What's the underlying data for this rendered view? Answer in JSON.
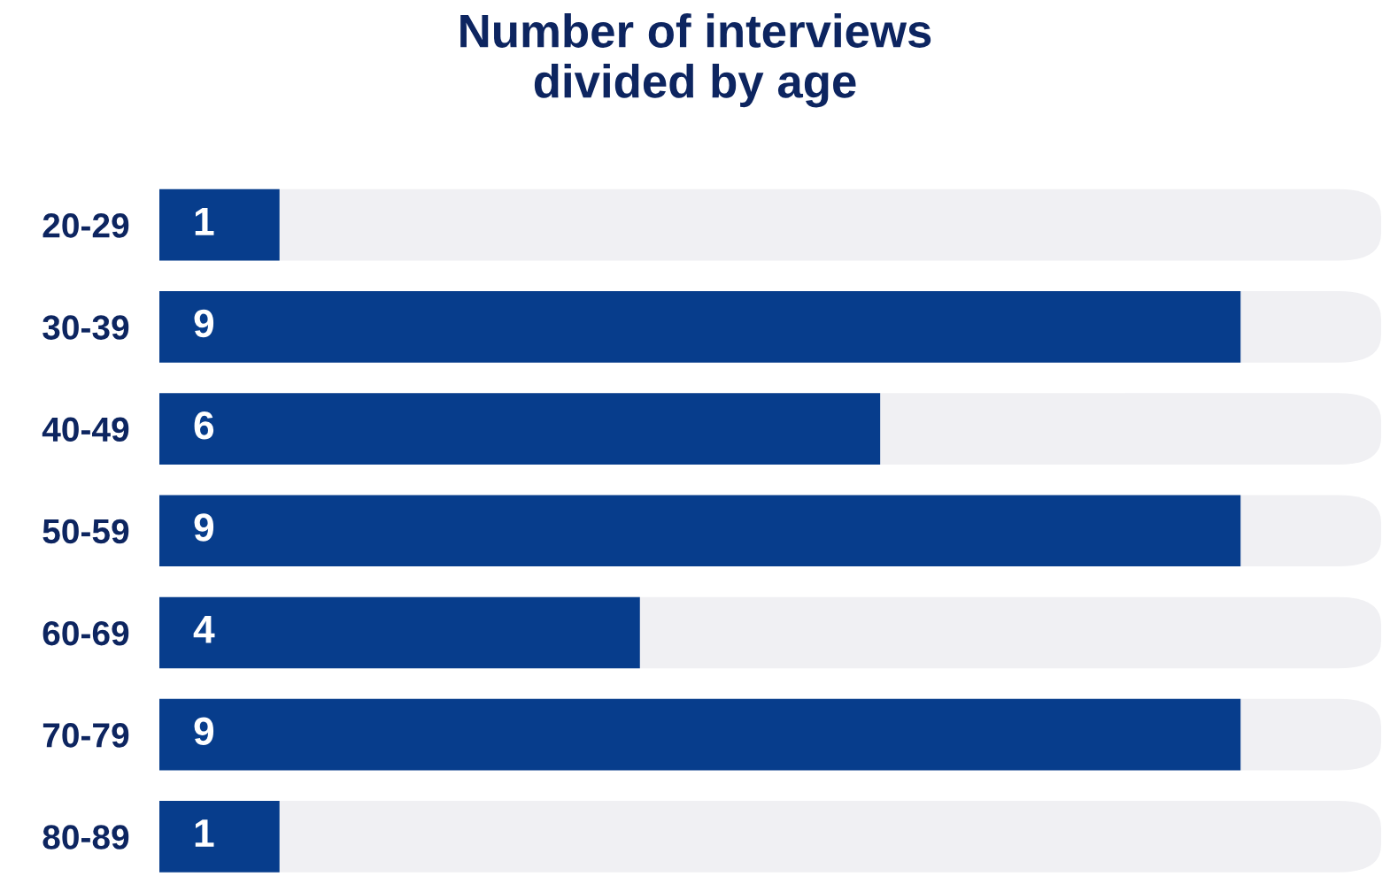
{
  "chart_data": {
    "type": "bar",
    "orientation": "horizontal",
    "title": "Number of interviews\ndivided by age",
    "categories": [
      "20-29",
      "30-39",
      "40-49",
      "50-59",
      "60-69",
      "70-79",
      "80-89"
    ],
    "values": [
      1,
      9,
      6,
      9,
      4,
      9,
      1
    ],
    "color": "#073d8c",
    "data_labels": true,
    "grid": false,
    "legend": false
  }
}
